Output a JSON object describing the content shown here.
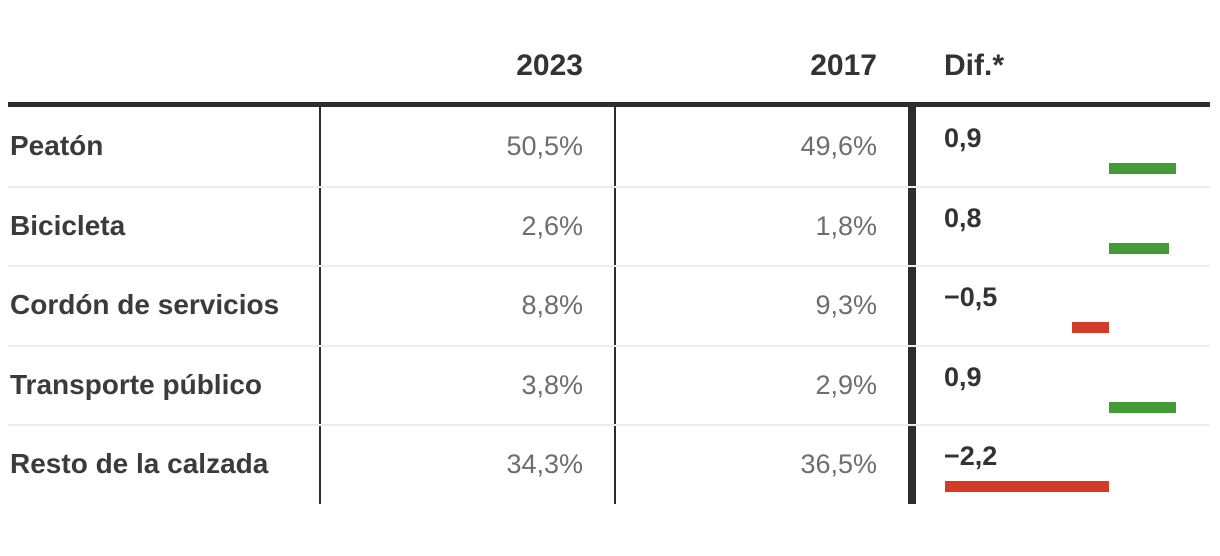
{
  "header": {
    "col_2023": "2023",
    "col_2017": "2017",
    "col_diff": "Dif.*"
  },
  "table": {
    "rows": [
      {
        "label": "Peatón",
        "value_2023": "50,5%",
        "value_2017": "49,6%",
        "diff_label": "0,9",
        "diff": 0.9
      },
      {
        "label": "Bicicleta",
        "value_2023": "2,6%",
        "value_2017": "1,8%",
        "diff_label": "0,8",
        "diff": 0.8
      },
      {
        "label": "Cordón de servicios",
        "value_2023": "8,8%",
        "value_2017": "9,3%",
        "diff_label": "−0,5",
        "diff": -0.5
      },
      {
        "label": "Transporte público",
        "value_2023": "3,8%",
        "value_2017": "2,9%",
        "diff_label": "0,9",
        "diff": 0.9
      },
      {
        "label": "Resto de la calzada",
        "value_2023": "34,3%",
        "value_2017": "36,5%",
        "diff_label": "−2,2",
        "diff": -2.2
      }
    ]
  },
  "colors": {
    "diff_positive": "#459a38",
    "diff_negative": "#d13b27",
    "rule_dark": "#2d2d2d",
    "row_divider": "#ececec"
  },
  "chart_data": {
    "type": "table",
    "categories": [
      "Peatón",
      "Bicicleta",
      "Cordón de servicios",
      "Transporte público",
      "Resto de la calzada"
    ],
    "series": [
      {
        "name": "2023",
        "unit": "%",
        "values": [
          50.5,
          2.6,
          8.8,
          3.8,
          34.3
        ]
      },
      {
        "name": "2017",
        "unit": "%",
        "values": [
          49.6,
          1.8,
          9.3,
          2.9,
          36.5
        ]
      },
      {
        "name": "Dif.*",
        "display": "bar",
        "values": [
          0.9,
          0.8,
          -0.5,
          0.9,
          -2.2
        ],
        "positive_color": "#459a38",
        "negative_color": "#d13b27",
        "axis_range": [
          -2.2,
          0.9
        ]
      }
    ],
    "decimal_separator": ",",
    "legend_position": "none",
    "grid": false
  }
}
